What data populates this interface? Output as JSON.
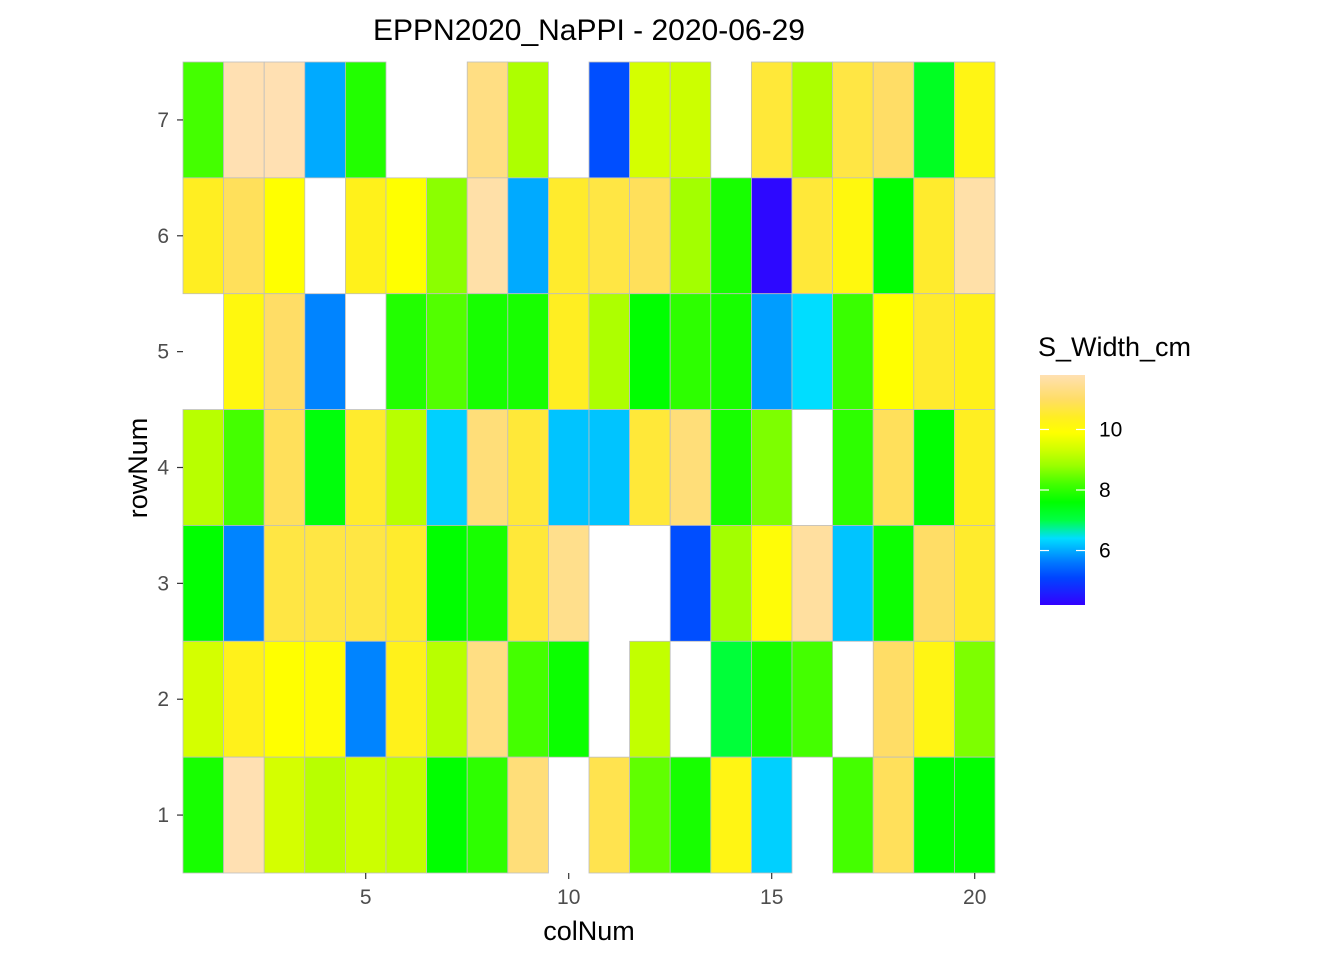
{
  "chart_data": {
    "type": "heatmap",
    "title": "EPPN2020_NaPPI - 2020-06-29",
    "xlabel": "colNum",
    "ylabel": "rowNum",
    "x_ticks": [
      5,
      10,
      15,
      20
    ],
    "y_ticks": [
      1,
      2,
      3,
      4,
      5,
      6,
      7
    ],
    "xlim": [
      0.5,
      20.5
    ],
    "ylim": [
      0.5,
      7.5
    ],
    "legend": {
      "title": "S_Width_cm",
      "ticks": [
        6,
        8,
        10
      ],
      "min": 4.2,
      "max": 11.8,
      "placement": "right"
    },
    "color_scale": [
      [
        4.2,
        "#3300ff"
      ],
      [
        5.1,
        "#0044ff"
      ],
      [
        5.6,
        "#0077ff"
      ],
      [
        6.0,
        "#00aaff"
      ],
      [
        6.4,
        "#00ddff"
      ],
      [
        7.0,
        "#00ff44"
      ],
      [
        7.6,
        "#00ff00"
      ],
      [
        8.2,
        "#44ff00"
      ],
      [
        8.8,
        "#99ff00"
      ],
      [
        9.3,
        "#ccff00"
      ],
      [
        9.9,
        "#ffff00"
      ],
      [
        10.4,
        "#ffee22"
      ],
      [
        11.0,
        "#ffdd66"
      ],
      [
        11.8,
        "#ffe0b2"
      ]
    ],
    "grid": false,
    "rows": [
      {
        "row": 7,
        "values": [
          8.2,
          11.8,
          11.8,
          6.0,
          7.9,
          null,
          null,
          11.3,
          9.0,
          null,
          5.2,
          9.4,
          9.3,
          null,
          10.6,
          9.0,
          10.7,
          11.0,
          7.3,
          10.2
        ]
      },
      {
        "row": 6,
        "values": [
          10.4,
          10.9,
          9.9,
          null,
          10.3,
          9.9,
          8.7,
          11.7,
          6.0,
          10.5,
          10.7,
          10.9,
          8.9,
          7.8,
          4.3,
          10.6,
          10.1,
          7.6,
          10.5,
          11.7
        ]
      },
      {
        "row": 5,
        "values": [
          null,
          10.1,
          11.0,
          5.7,
          null,
          7.9,
          8.3,
          7.8,
          7.8,
          10.4,
          9.0,
          7.6,
          8.0,
          7.8,
          5.9,
          6.4,
          8.1,
          9.9,
          10.5,
          10.3
        ]
      },
      {
        "row": 4,
        "values": [
          9.1,
          8.2,
          10.9,
          7.5,
          10.5,
          9.1,
          6.3,
          11.2,
          10.6,
          6.2,
          6.2,
          10.6,
          11.2,
          7.8,
          8.6,
          null,
          8.0,
          10.9,
          7.6,
          10.4
        ]
      },
      {
        "row": 3,
        "values": [
          7.6,
          5.7,
          10.7,
          10.7,
          10.7,
          10.5,
          7.6,
          7.8,
          10.6,
          11.4,
          null,
          null,
          5.2,
          8.9,
          10.0,
          11.6,
          6.2,
          7.7,
          11.0,
          10.5
        ]
      },
      {
        "row": 2,
        "values": [
          9.4,
          10.3,
          9.9,
          10.0,
          5.7,
          10.3,
          9.1,
          11.3,
          8.2,
          7.7,
          null,
          9.2,
          null,
          7.1,
          7.8,
          8.2,
          null,
          11.0,
          10.2,
          8.6
        ]
      },
      {
        "row": 1,
        "values": [
          7.8,
          11.8,
          9.4,
          9.1,
          9.3,
          9.2,
          7.6,
          8.0,
          11.2,
          null,
          10.8,
          8.4,
          7.8,
          10.2,
          6.3,
          null,
          8.2,
          10.9,
          7.6,
          7.6
        ]
      }
    ]
  }
}
